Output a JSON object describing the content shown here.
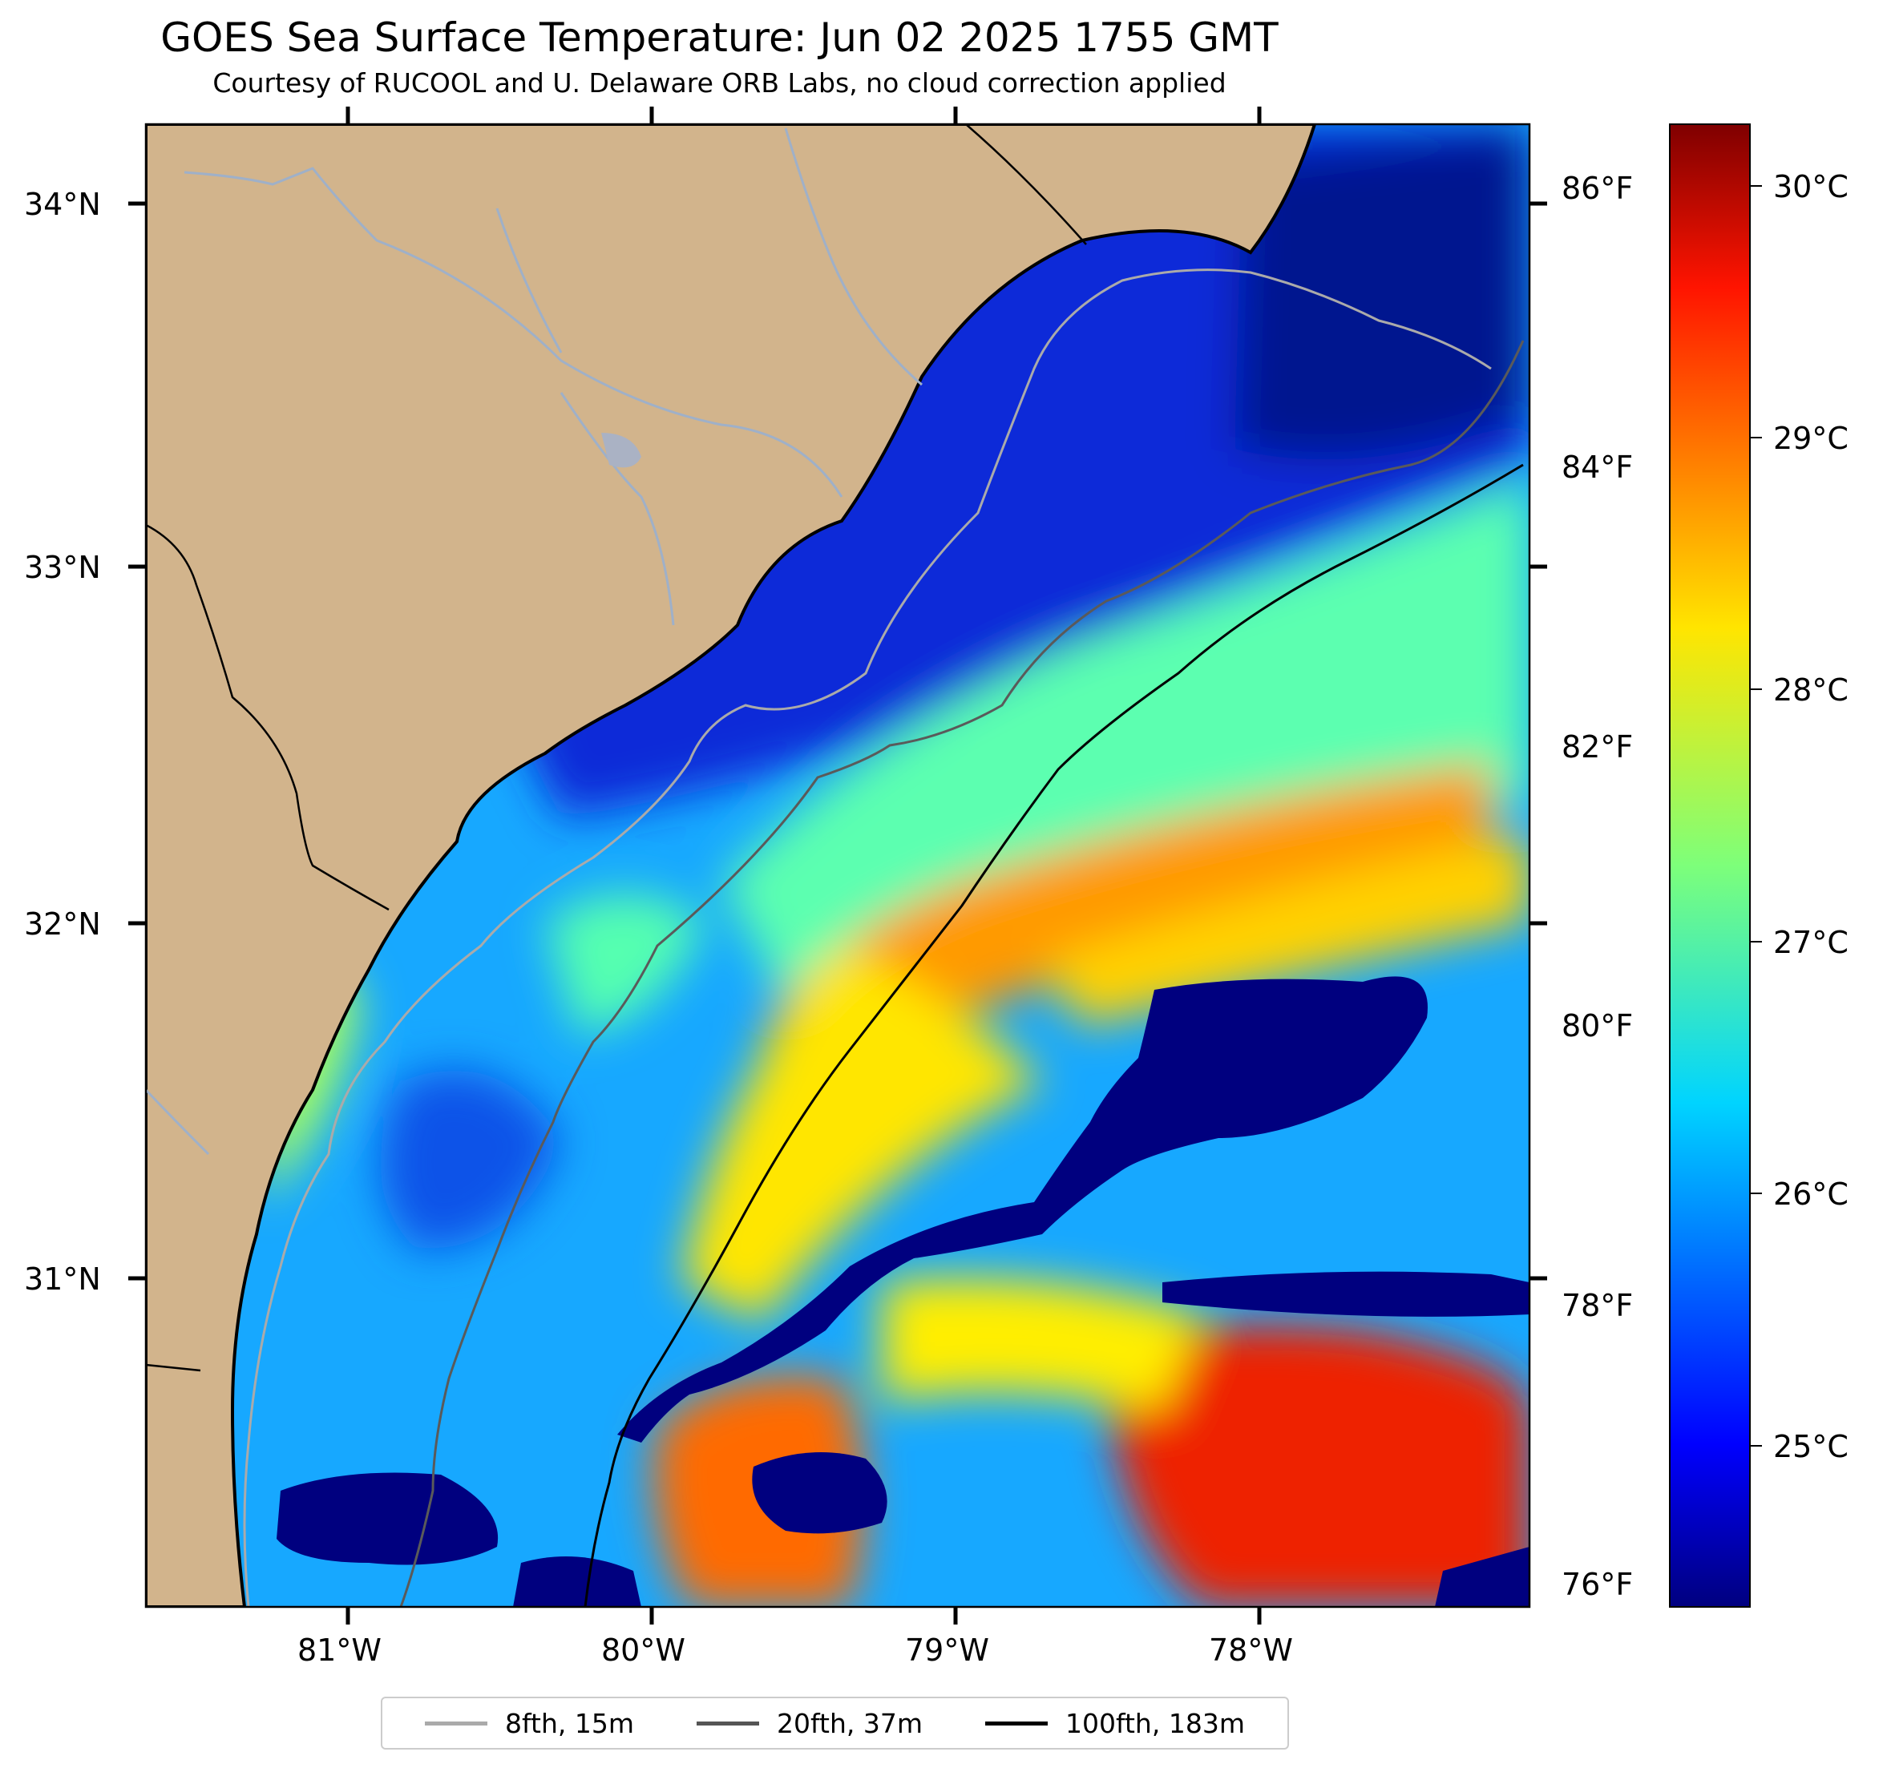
{
  "title": "GOES Sea Surface Temperature: Jun 02 2025 1755 GMT",
  "subtitle": "Courtesy of RUCOOL and U. Delaware ORB Labs, no cloud correction applied",
  "map": {
    "lat_labels": [
      "34°N",
      "33°N",
      "32°N",
      "31°N"
    ],
    "lon_labels": [
      "81°W",
      "80°W",
      "79°W",
      "78°W"
    ],
    "fahrenheit_labels": [
      "86°F",
      "84°F",
      "82°F",
      "80°F",
      "78°F",
      "76°F"
    ],
    "colors": {
      "land": "#d2b48c",
      "coastline": "#000000",
      "rivers": "#9fb0c8",
      "warm": "#ff4500",
      "cold": "#00008b"
    }
  },
  "colorbar": {
    "colormap": "jet",
    "labels": [
      "30°C",
      "29°C",
      "28°C",
      "27°C",
      "26°C",
      "25°C"
    ]
  },
  "legend": [
    {
      "label": "8fth, 15m",
      "color": "#aaaaaa"
    },
    {
      "label": "20fth, 37m",
      "color": "#555555"
    },
    {
      "label": "100fth, 183m",
      "color": "#000000"
    }
  ]
}
